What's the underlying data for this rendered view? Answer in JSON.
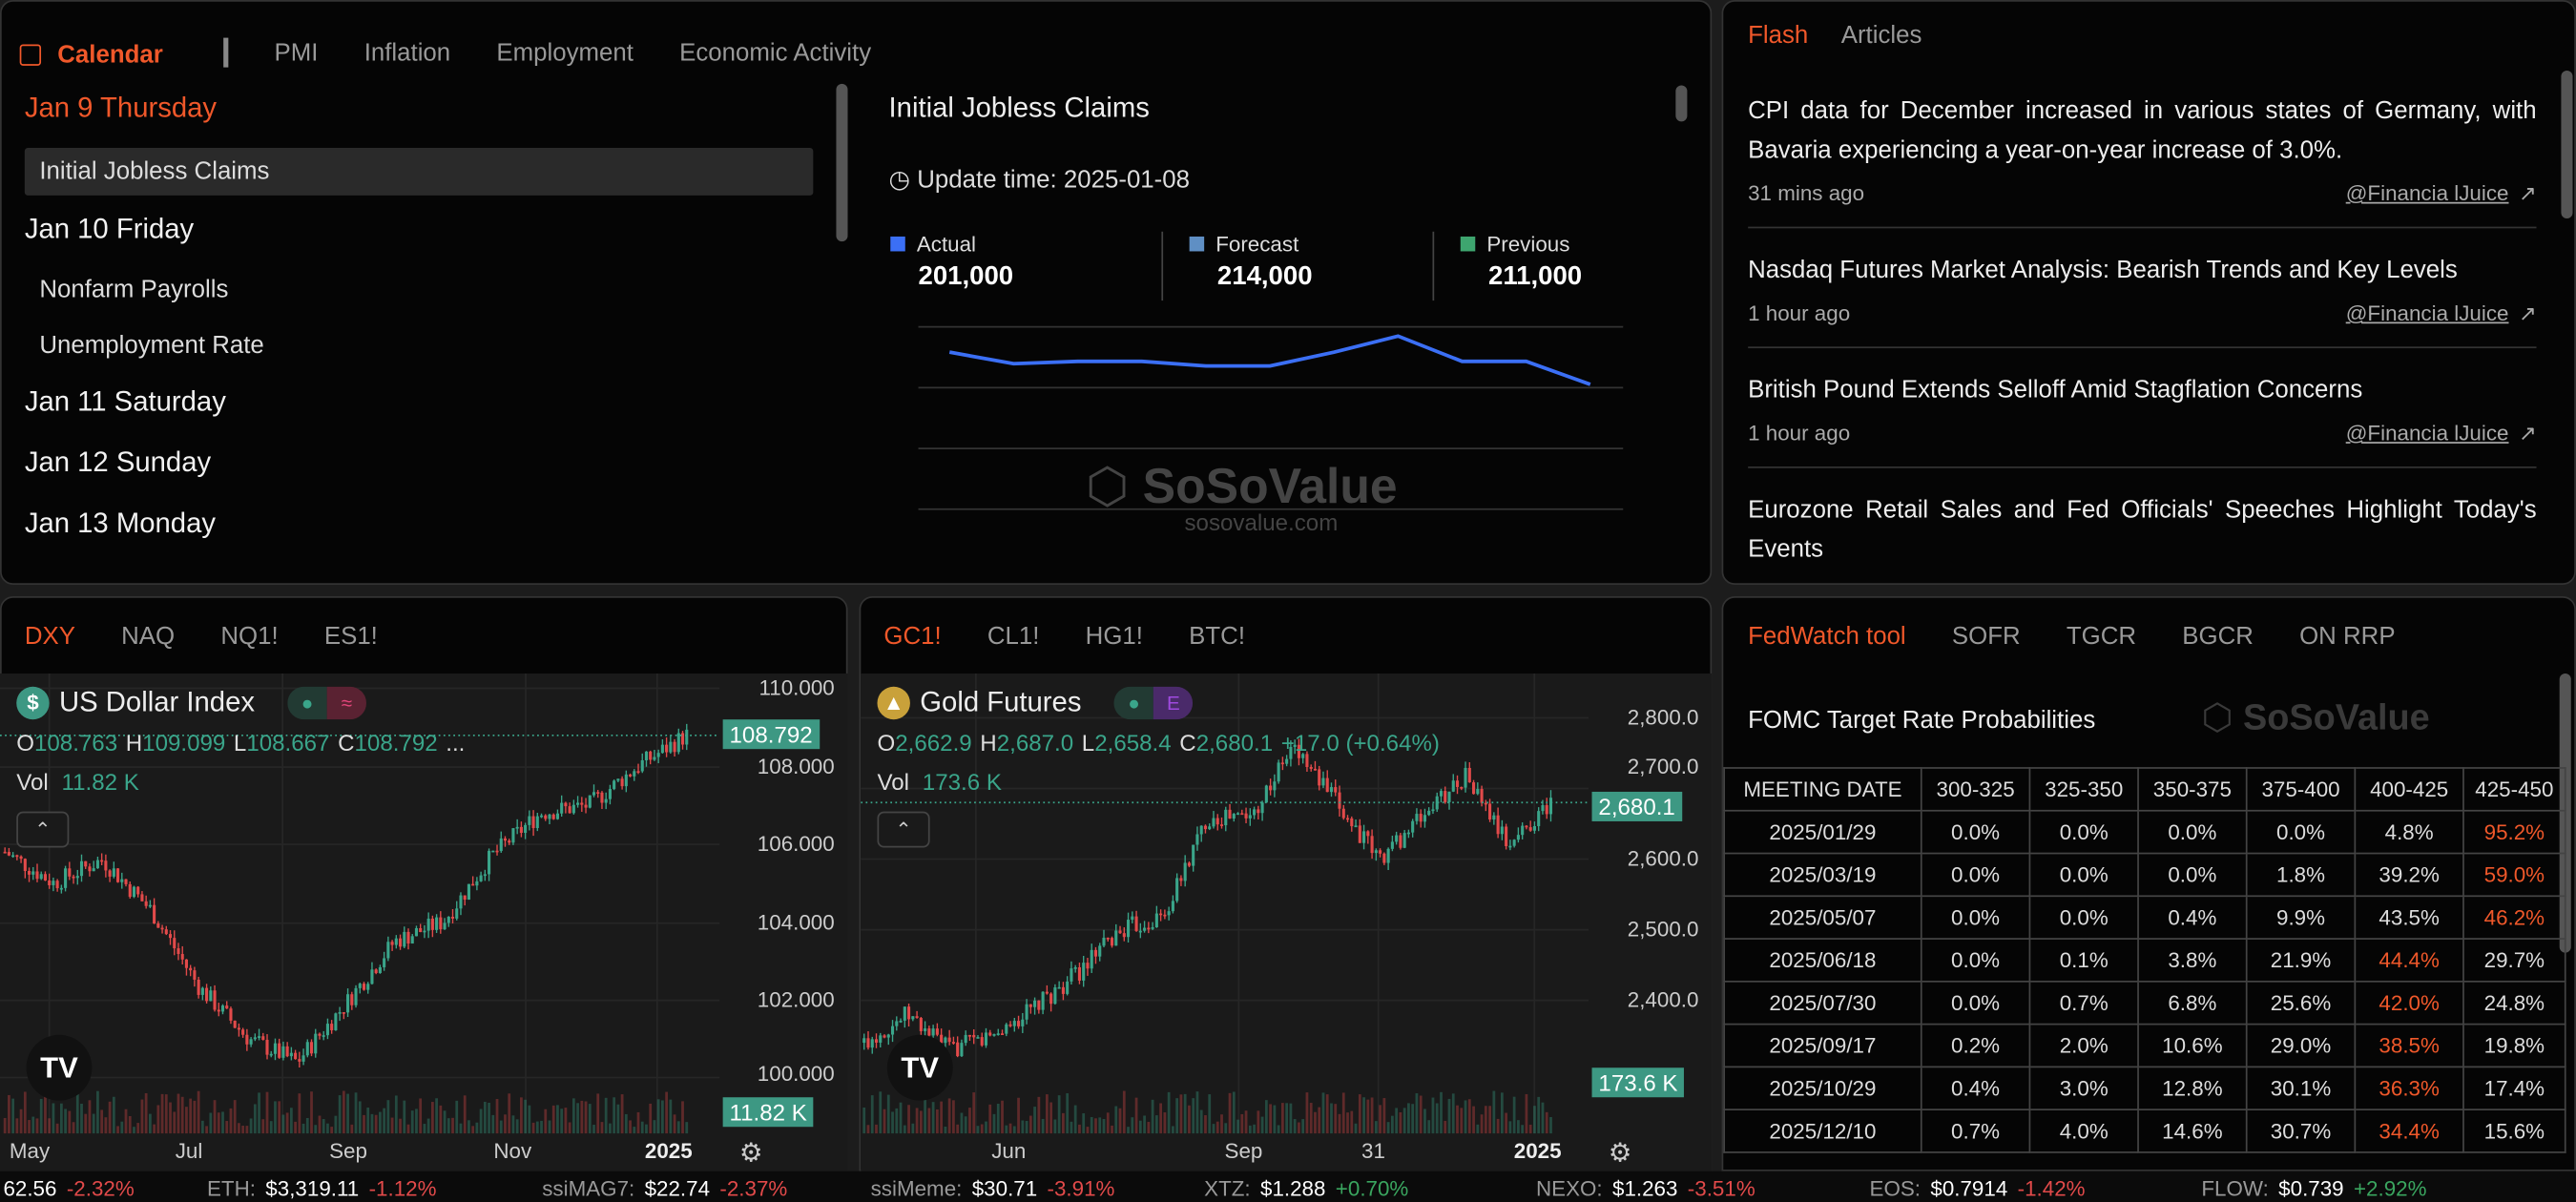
{
  "calendar": {
    "label": "Calendar",
    "tabs": [
      "PMI",
      "Inflation",
      "Employment",
      "Economic Activity"
    ],
    "days": [
      {
        "day": "Jan 9 Thursday",
        "events": [
          "Initial Jobless Claims"
        ]
      },
      {
        "day": "Jan 10 Friday",
        "events": [
          "Nonfarm Payrolls",
          "Unemployment Rate"
        ]
      },
      {
        "day": "Jan 11 Saturday",
        "events": []
      },
      {
        "day": "Jan 12 Sunday",
        "events": []
      },
      {
        "day": "Jan 13 Monday",
        "events": []
      }
    ]
  },
  "detail": {
    "title": "Initial Jobless Claims",
    "update": "Update time: 2025-01-08",
    "stats": [
      {
        "label": "Actual",
        "value": "201,000",
        "color": "#3b6ff5"
      },
      {
        "label": "Forecast",
        "value": "214,000",
        "color": "#5f8fc4"
      },
      {
        "label": "Previous",
        "value": "211,000",
        "color": "#3ea56f"
      }
    ],
    "series": [
      215000,
      210000,
      211000,
      211000,
      209000,
      209000,
      215000,
      222000,
      211000,
      211000,
      201000
    ]
  },
  "watermark": {
    "brand": "SoSoValue",
    "url": "sosovalue.com"
  },
  "news": {
    "tabs": [
      "Flash",
      "Articles"
    ],
    "items": [
      {
        "title": "CPI data for December increased in various states of Germany, with Bavaria experiencing a year-on-year increase of 3.0%.",
        "time": "31 mins ago",
        "source": "@Financia lJuice"
      },
      {
        "title": "Nasdaq Futures Market Analysis: Bearish Trends and Key Levels",
        "time": "1 hour ago",
        "source": "@Financia lJuice"
      },
      {
        "title": "British Pound Extends Selloff Amid Stagflation Concerns",
        "time": "1 hour ago",
        "source": "@Financia lJuice"
      },
      {
        "title": "Eurozone Retail Sales and Fed Officials' Speeches Highlight Today's Events",
        "time": "",
        "source": ""
      }
    ]
  },
  "chart1": {
    "tabs": [
      "DXY",
      "NAQ",
      "NQ1!",
      "ES1!"
    ],
    "name": "US Dollar Index",
    "o": "108.763",
    "h": "109.099",
    "l": "108.667",
    "c": "108.792",
    "extra": "...",
    "vol_label": "Vol",
    "vol": "11.82 K",
    "price": "108.792",
    "vol_tag": "11.82 K",
    "yticks": [
      "110.000",
      "108.000",
      "106.000",
      "104.000",
      "102.000",
      "100.000"
    ],
    "xticks": [
      "May",
      "Jul",
      "Sep",
      "Nov",
      "2025"
    ],
    "path": [
      105.8,
      105.0,
      105.6,
      104.3,
      102.3,
      101.0,
      100.4,
      101.9,
      103.5,
      104.0,
      105.7,
      106.8,
      107.0,
      108.0,
      108.8
    ]
  },
  "chart2": {
    "tabs": [
      "GC1!",
      "CL1!",
      "HG1!",
      "BTC!"
    ],
    "name": "Gold Futures",
    "o": "2,662.9",
    "h": "2,687.0",
    "l": "2,658.4",
    "c": "2,680.1",
    "change": "+17.0 (+0.64%)",
    "vol_label": "Vol",
    "vol": "173.6 K",
    "price": "2,680.1",
    "vol_tag": "173.6 K",
    "yticks": [
      "2,800.0",
      "2,700.0",
      "2,600.0",
      "2,500.0",
      "2,400.0"
    ],
    "xticks": [
      "Jun",
      "Sep",
      "31",
      "2025"
    ],
    "path": [
      2340,
      2380,
      2330,
      2350,
      2390,
      2440,
      2500,
      2520,
      2660,
      2660,
      2760,
      2680,
      2600,
      2660,
      2720,
      2620,
      2680
    ]
  },
  "fedwatch": {
    "tabs": [
      "FedWatch tool",
      "SOFR",
      "TGCR",
      "BGCR",
      "ON RRP"
    ],
    "title": "FOMC Target Rate Probabilities",
    "headers": [
      "MEETING DATE",
      "300-325",
      "325-350",
      "350-375",
      "375-400",
      "400-425",
      "425-450"
    ],
    "rows": [
      [
        "2025/01/29",
        "0.0%",
        "0.0%",
        "0.0%",
        "0.0%",
        "4.8%",
        "95.2%"
      ],
      [
        "2025/03/19",
        "0.0%",
        "0.0%",
        "0.0%",
        "1.8%",
        "39.2%",
        "59.0%"
      ],
      [
        "2025/05/07",
        "0.0%",
        "0.0%",
        "0.4%",
        "9.9%",
        "43.5%",
        "46.2%"
      ],
      [
        "2025/06/18",
        "0.0%",
        "0.1%",
        "3.8%",
        "21.9%",
        "44.4%",
        "29.7%"
      ],
      [
        "2025/07/30",
        "0.0%",
        "0.7%",
        "6.8%",
        "25.6%",
        "42.0%",
        "24.8%"
      ],
      [
        "2025/09/17",
        "0.2%",
        "2.0%",
        "10.6%",
        "29.0%",
        "38.5%",
        "19.8%"
      ],
      [
        "2025/10/29",
        "0.4%",
        "3.0%",
        "12.8%",
        "30.1%",
        "36.3%",
        "17.4%"
      ],
      [
        "2025/12/10",
        "0.7%",
        "4.0%",
        "14.6%",
        "30.7%",
        "34.4%",
        "15.6%"
      ]
    ],
    "highlight_col": [
      6,
      6,
      6,
      5,
      5,
      5,
      5,
      5
    ]
  },
  "ticker": [
    {
      "label": "",
      "price": "62.56",
      "change": "-2.32%"
    },
    {
      "label": "ETH:",
      "price": "$3,319.11",
      "change": "-1.12%"
    },
    {
      "label": "ssiMAG7:",
      "price": "$22.74",
      "change": "-2.37%"
    },
    {
      "label": "ssiMeme:",
      "price": "$30.71",
      "change": "-3.91%"
    },
    {
      "label": "XTZ:",
      "price": "$1.288",
      "change": "+0.70%"
    },
    {
      "label": "NEXO:",
      "price": "$1.263",
      "change": "-3.51%"
    },
    {
      "label": "EOS:",
      "price": "$0.7914",
      "change": "-1.42%"
    },
    {
      "label": "FLOW:",
      "price": "$0.739",
      "change": "+2.92%"
    }
  ],
  "colors": {
    "accent": "#f0582a",
    "up": "#3aa58a",
    "down": "#e24a4a"
  }
}
